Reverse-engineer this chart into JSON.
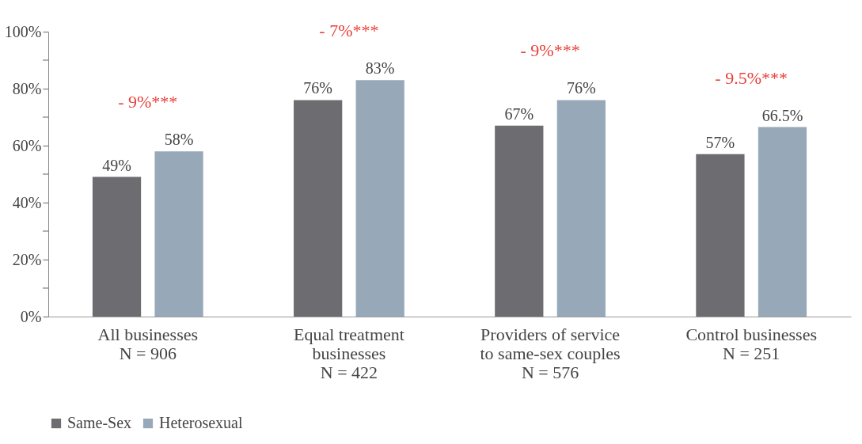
{
  "chart_data": {
    "type": "bar",
    "categories": [
      "All businesses",
      "Equal treatment businesses",
      "Providers of service to same-sex couples",
      "Control businesses"
    ],
    "series": [
      {
        "name": "Same-Sex",
        "color": "#6d6c71",
        "values": [
          49,
          76,
          67,
          57
        ]
      },
      {
        "name": "Heterosexual",
        "color": "#97a9b8",
        "values": [
          58,
          83,
          76,
          66.5
        ]
      }
    ],
    "ylim": [
      0,
      100
    ],
    "yticks": [
      {
        "value": 0,
        "label": "0%"
      },
      {
        "value": 10,
        "label": null
      },
      {
        "value": 20,
        "label": "20%"
      },
      {
        "value": 30,
        "label": null
      },
      {
        "value": 40,
        "label": "40%"
      },
      {
        "value": 50,
        "label": null
      },
      {
        "value": 60,
        "label": "60%"
      },
      {
        "value": 70,
        "label": null
      },
      {
        "value": 80,
        "label": "80%"
      },
      {
        "value": 90,
        "label": null
      },
      {
        "value": 100,
        "label": "100%"
      }
    ],
    "value_labels": [
      [
        "49%",
        "76%",
        "67%",
        "57%"
      ],
      [
        "58%",
        "83%",
        "76%",
        "66.5%"
      ]
    ],
    "annotations": [
      "- 9%***",
      "- 7%***",
      "- 9%***",
      "- 9.5%***",
      "N = 906",
      "N = 422",
      "N = 576",
      "N = 251"
    ],
    "grid": false,
    "legend": "bottom"
  }
}
